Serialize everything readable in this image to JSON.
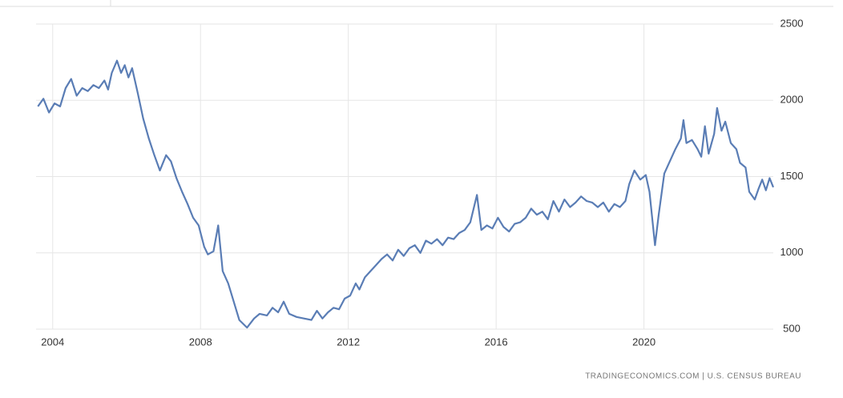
{
  "chart_data": {
    "type": "line",
    "source": "TRADINGECONOMICS.COM  |  U.S. CENSUS BUREAU",
    "xlim": [
      2003.55,
      2023.5
    ],
    "xticks": [
      2004,
      2008,
      2012,
      2016,
      2020
    ],
    "ylim": [
      500,
      2500
    ],
    "yticks": [
      500,
      1000,
      1500,
      2000,
      2500
    ],
    "grid": true,
    "x": [
      2003.6,
      2003.75,
      2003.9,
      2004.05,
      2004.2,
      2004.35,
      2004.5,
      2004.65,
      2004.8,
      2004.95,
      2005.1,
      2005.25,
      2005.4,
      2005.5,
      2005.6,
      2005.74,
      2005.85,
      2005.95,
      2006.05,
      2006.15,
      2006.3,
      2006.45,
      2006.6,
      2006.75,
      2006.9,
      2007.07,
      2007.2,
      2007.35,
      2007.5,
      2007.65,
      2007.8,
      2007.95,
      2008.1,
      2008.2,
      2008.35,
      2008.48,
      2008.6,
      2008.75,
      2008.9,
      2009.05,
      2009.26,
      2009.45,
      2009.6,
      2009.8,
      2009.95,
      2010.1,
      2010.25,
      2010.4,
      2010.6,
      2010.8,
      2011.0,
      2011.15,
      2011.3,
      2011.45,
      2011.6,
      2011.75,
      2011.9,
      2012.05,
      2012.2,
      2012.3,
      2012.45,
      2012.6,
      2012.75,
      2012.9,
      2013.05,
      2013.2,
      2013.35,
      2013.5,
      2013.65,
      2013.8,
      2013.95,
      2014.1,
      2014.25,
      2014.4,
      2014.55,
      2014.7,
      2014.85,
      2015.0,
      2015.15,
      2015.3,
      2015.48,
      2015.6,
      2015.75,
      2015.9,
      2016.05,
      2016.2,
      2016.35,
      2016.5,
      2016.65,
      2016.8,
      2016.95,
      2017.1,
      2017.25,
      2017.4,
      2017.55,
      2017.7,
      2017.85,
      2018.0,
      2018.15,
      2018.3,
      2018.45,
      2018.6,
      2018.75,
      2018.9,
      2019.05,
      2019.2,
      2019.35,
      2019.5,
      2019.6,
      2019.74,
      2019.9,
      2020.05,
      2020.15,
      2020.3,
      2020.4,
      2020.55,
      2020.7,
      2020.85,
      2021.0,
      2021.07,
      2021.15,
      2021.3,
      2021.45,
      2021.55,
      2021.65,
      2021.75,
      2021.9,
      2021.98,
      2022.1,
      2022.2,
      2022.35,
      2022.5,
      2022.6,
      2022.75,
      2022.85,
      2023.0,
      2023.1,
      2023.2,
      2023.3,
      2023.4,
      2023.5
    ],
    "series": [
      {
        "color": "#5a7db5",
        "values": [
          1960,
          2010,
          1920,
          1980,
          1960,
          2080,
          2140,
          2030,
          2080,
          2060,
          2100,
          2080,
          2130,
          2070,
          2180,
          2260,
          2180,
          2230,
          2150,
          2210,
          2050,
          1880,
          1750,
          1640,
          1540,
          1640,
          1600,
          1490,
          1400,
          1320,
          1230,
          1180,
          1040,
          990,
          1010,
          1180,
          880,
          800,
          680,
          560,
          510,
          570,
          600,
          590,
          640,
          610,
          680,
          600,
          580,
          570,
          560,
          620,
          570,
          610,
          640,
          630,
          700,
          720,
          800,
          760,
          840,
          880,
          920,
          960,
          990,
          950,
          1020,
          980,
          1030,
          1050,
          1000,
          1080,
          1060,
          1090,
          1050,
          1100,
          1090,
          1130,
          1150,
          1200,
          1380,
          1150,
          1180,
          1160,
          1230,
          1170,
          1140,
          1190,
          1200,
          1230,
          1290,
          1250,
          1270,
          1220,
          1340,
          1270,
          1350,
          1300,
          1330,
          1370,
          1340,
          1330,
          1300,
          1330,
          1270,
          1320,
          1300,
          1340,
          1450,
          1540,
          1480,
          1510,
          1400,
          1050,
          1250,
          1520,
          1600,
          1680,
          1750,
          1870,
          1720,
          1740,
          1680,
          1630,
          1830,
          1650,
          1780,
          1950,
          1800,
          1860,
          1720,
          1680,
          1590,
          1560,
          1400,
          1350,
          1420,
          1480,
          1410,
          1490,
          1430
        ]
      }
    ]
  }
}
